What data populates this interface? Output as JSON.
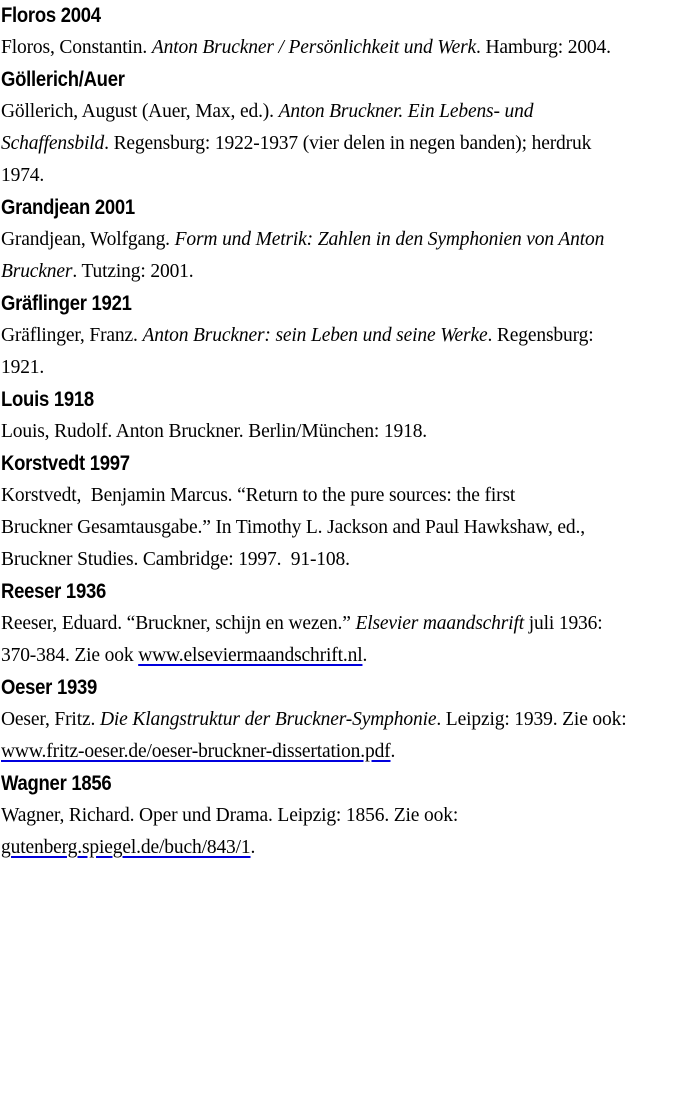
{
  "page": {
    "background_color": "#ffffff",
    "text_color": "#000000",
    "link_underline_color": "#0000dd"
  },
  "bibliography": {
    "entries": [
      {
        "label": "Floros 2004",
        "lines": [
          [
            {
              "t": "Floros, Constantin. ",
              "s": "normal"
            },
            {
              "t": "Anton Bruckner / Persönlichkeit und Werk",
              "s": "italic"
            },
            {
              "t": ". Hamburg: 2004.",
              "s": "normal"
            }
          ]
        ]
      },
      {
        "label": "Göllerich/Auer",
        "lines": [
          [
            {
              "t": "Göllerich, August (Auer, Max, ed.). ",
              "s": "normal"
            },
            {
              "t": "Anton Bruckner. Ein Lebens- und",
              "s": "italic"
            }
          ],
          [
            {
              "t": "Schaffensbild",
              "s": "italic"
            },
            {
              "t": ". Regensburg: 1922-1937 (vier delen in negen banden); herdruk",
              "s": "normal"
            }
          ],
          [
            {
              "t": "1974.",
              "s": "normal"
            }
          ]
        ]
      },
      {
        "label": "Grandjean 2001",
        "lines": [
          [
            {
              "t": "Grandjean, Wolfgang. ",
              "s": "normal"
            },
            {
              "t": "Form und Metrik: Zahlen in den Symphonien von Anton",
              "s": "italic"
            }
          ],
          [
            {
              "t": "Bruckner",
              "s": "italic"
            },
            {
              "t": ". Tutzing: 2001.",
              "s": "normal"
            }
          ]
        ]
      },
      {
        "label": "Gräflinger 1921",
        "lines": [
          [
            {
              "t": "Gräflinger, Franz. ",
              "s": "normal"
            },
            {
              "t": "Anton Bruckner: sein Leben und seine Werke",
              "s": "italic"
            },
            {
              "t": ". Regensburg:",
              "s": "normal"
            }
          ],
          [
            {
              "t": "1921.",
              "s": "normal"
            }
          ]
        ]
      },
      {
        "label": "Louis 1918",
        "lines": [
          [
            {
              "t": "Louis, Rudolf. Anton Bruckner. Berlin/München: 1918.",
              "s": "normal"
            }
          ]
        ]
      },
      {
        "label": "Korstvedt 1997",
        "lines": [
          [
            {
              "t": "Korstvedt,  Benjamin Marcus. “Return to the pure sources: the first",
              "s": "normal"
            }
          ],
          [
            {
              "t": "Bruckner Gesamtausgabe.” In Timothy L. Jackson and Paul Hawkshaw, ed.,",
              "s": "normal"
            }
          ],
          [
            {
              "t": "Bruckner Studies. Cambridge: 1997.  91-108.",
              "s": "normal"
            }
          ]
        ]
      },
      {
        "label": "Reeser 1936",
        "lines": [
          [
            {
              "t": "Reeser, Eduard. “Bruckner, schijn en wezen.” ",
              "s": "normal"
            },
            {
              "t": "Elsevier maandschrift",
              "s": "italic"
            },
            {
              "t": " juli 1936:",
              "s": "normal"
            }
          ],
          [
            {
              "t": "370-384. Zie ook ",
              "s": "normal"
            },
            {
              "t": "www.elseviermaandschrift.nl",
              "s": "link"
            },
            {
              "t": ".",
              "s": "normal"
            }
          ]
        ]
      },
      {
        "label": "Oeser 1939",
        "lines": [
          [
            {
              "t": "Oeser, Fritz. ",
              "s": "normal"
            },
            {
              "t": "Die Klangstruktur der Bruckner-Symphonie",
              "s": "italic"
            },
            {
              "t": ". Leipzig: 1939. Zie ook:",
              "s": "normal"
            }
          ],
          [
            {
              "t": "www.fritz-oeser.de/oeser-bruckner-dissertation.pdf",
              "s": "link"
            },
            {
              "t": ".",
              "s": "normal"
            }
          ]
        ]
      },
      {
        "label": "Wagner 1856",
        "lines": [
          [
            {
              "t": "Wagner, Richard. Oper und Drama. Leipzig: 1856. Zie ook:",
              "s": "normal"
            }
          ],
          [
            {
              "t": "gutenberg.spiegel.de/buch/843/1",
              "s": "link"
            },
            {
              "t": ".",
              "s": "normal"
            }
          ]
        ]
      }
    ]
  }
}
